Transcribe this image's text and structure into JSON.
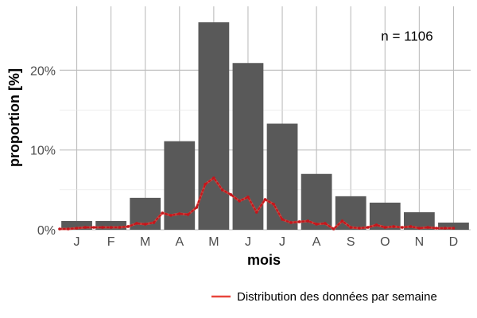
{
  "chart_data": {
    "type": "bar",
    "categories": [
      "J",
      "F",
      "M",
      "A",
      "M",
      "J",
      "J",
      "A",
      "S",
      "O",
      "N",
      "D"
    ],
    "values": [
      1.1,
      1.1,
      4.0,
      11.1,
      26.0,
      20.9,
      13.3,
      7.0,
      4.2,
      3.4,
      2.2,
      0.9
    ],
    "ylim": [
      0,
      28
    ],
    "y_ticks": [
      0,
      10,
      20
    ],
    "y_tick_labels": [
      "0%",
      "10%",
      "20%"
    ],
    "xlabel": "mois",
    "ylabel": "proportion [%]",
    "annotation": "n = 1106",
    "grid": true,
    "legend_position": "bottom",
    "bar_color": "#595959",
    "weekly_color": "#e8453c",
    "weekly_series": {
      "name": "Distribution des données par semaine",
      "type": "line",
      "x_months": [
        0.0,
        0.25,
        0.5,
        0.75,
        1.0,
        1.25,
        1.5,
        1.75,
        2.0,
        2.25,
        2.5,
        2.75,
        3.0,
        3.25,
        3.5,
        3.75,
        4.0,
        4.25,
        4.5,
        4.75,
        5.0,
        5.25,
        5.5,
        5.75,
        6.0,
        6.25,
        6.5,
        6.75,
        7.0,
        7.25,
        7.5,
        7.75,
        8.0,
        8.25,
        8.5,
        8.75,
        9.0,
        9.25,
        9.5,
        9.75,
        10.0,
        10.25,
        10.5,
        10.75,
        11.0,
        11.25,
        11.5
      ],
      "values": [
        0.1,
        0.1,
        0.2,
        0.3,
        0.3,
        0.3,
        0.3,
        0.3,
        0.4,
        0.8,
        0.7,
        0.9,
        2.1,
        1.8,
        2.0,
        1.9,
        2.8,
        5.7,
        6.5,
        5.0,
        4.4,
        3.6,
        4.1,
        2.2,
        3.8,
        3.2,
        1.3,
        0.9,
        1.0,
        1.1,
        0.7,
        0.8,
        0.1,
        1.1,
        0.3,
        0.2,
        0.3,
        0.6,
        0.3,
        0.4,
        0.3,
        0.4,
        0.2,
        0.3,
        0.2,
        0.2,
        0.2
      ]
    }
  }
}
